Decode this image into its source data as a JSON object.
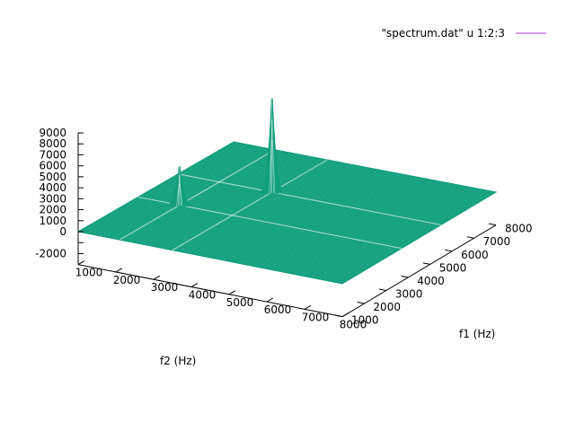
{
  "chart_data": {
    "type": "surface",
    "legend": {
      "entries": [
        {
          "label": "\"spectrum.dat\" u 1:2:3",
          "color": "#c060e0"
        }
      ],
      "position": "top-right"
    },
    "surface_color": "#109e7c",
    "xlabel": "f2 (Hz)",
    "ylabel": "f1 (Hz)",
    "zlabel": "",
    "xlim": [
      1000,
      8000
    ],
    "ylim": [
      1000,
      8000
    ],
    "zlim": [
      -3000,
      9000
    ],
    "x_ticks": [
      "1000",
      "2000",
      "3000",
      "4000",
      "5000",
      "6000",
      "7000",
      "8000"
    ],
    "y_ticks": [
      "1000",
      "2000",
      "3000",
      "4000",
      "5000",
      "6000",
      "7000",
      "8000"
    ],
    "z_ticks": [
      "-2000",
      "-1000",
      "0",
      "1000",
      "2000",
      "3000",
      "4000",
      "5000",
      "6000",
      "7000",
      "8000",
      "9000"
    ],
    "z_tick_labels": [
      "-2000",
      "0",
      "1000",
      "2000",
      "3000",
      "4000",
      "5000",
      "6000",
      "7000",
      "8000",
      "9000"
    ],
    "baseline": 0,
    "peaks": [
      {
        "f2": 3500,
        "f1": 5500,
        "height": 8500
      },
      {
        "f2": 2100,
        "f1": 3700,
        "height": 3500
      }
    ]
  }
}
